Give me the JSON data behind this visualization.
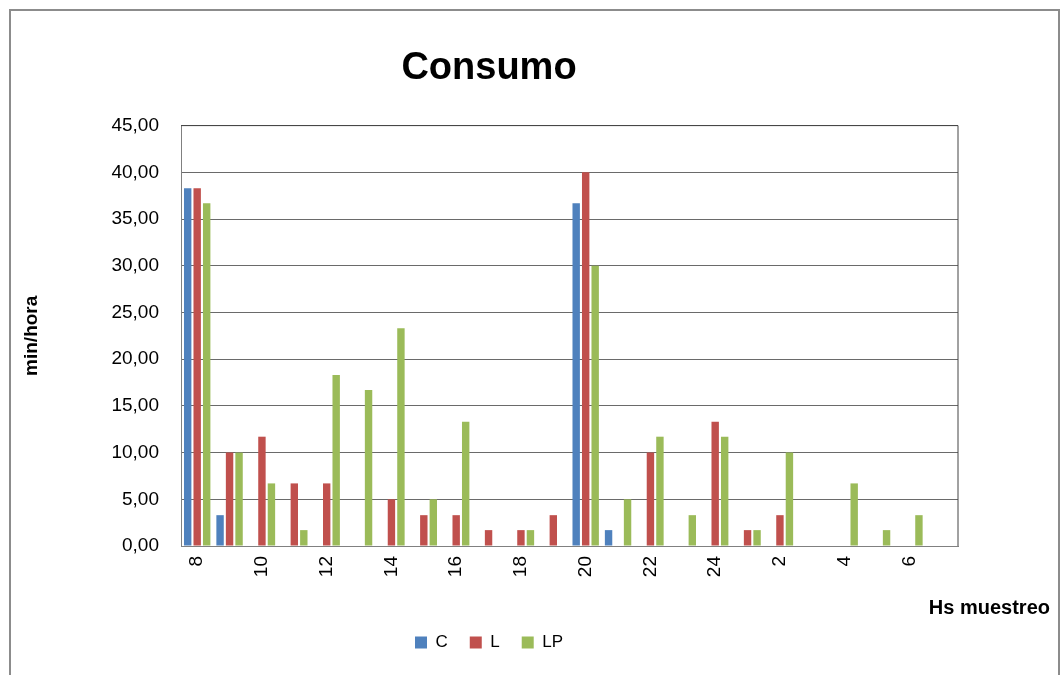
{
  "chart_data": {
    "type": "bar",
    "title": "Consumo",
    "xlabel": "Hs muestreo",
    "ylabel": "min/hora",
    "categories": [
      "8",
      null,
      "10",
      null,
      "12",
      null,
      "14",
      null,
      "16",
      null,
      "18",
      null,
      "20",
      null,
      "22",
      null,
      "24",
      null,
      "2",
      null,
      "4",
      null,
      "6",
      null
    ],
    "series": [
      {
        "name": "C",
        "color": "#4f81bd",
        "values": [
          38.3,
          3.3,
          0,
          0,
          0,
          0,
          0,
          0,
          0,
          0,
          0,
          0,
          36.7,
          1.7,
          0,
          0,
          0,
          0,
          0,
          0,
          0,
          0,
          0,
          0
        ]
      },
      {
        "name": "L",
        "color": "#c0504d",
        "values": [
          38.3,
          10,
          11.7,
          6.7,
          6.7,
          0,
          5,
          3.3,
          3.3,
          1.7,
          1.7,
          3.3,
          40,
          0,
          10,
          0,
          13.3,
          1.7,
          3.3,
          0,
          0,
          0,
          0,
          0
        ]
      },
      {
        "name": "LP",
        "color": "#9bbb59",
        "values": [
          36.7,
          10,
          6.7,
          1.7,
          18.3,
          16.7,
          23.3,
          5,
          13.3,
          0,
          1.7,
          0,
          30,
          5,
          11.7,
          3.3,
          11.7,
          1.7,
          10,
          0,
          6.7,
          1.7,
          3.3,
          0
        ]
      }
    ],
    "ylim": [
      0,
      45
    ],
    "yticks": [
      {
        "value": 0,
        "label": "0,00"
      },
      {
        "value": 5,
        "label": "5,00"
      },
      {
        "value": 10,
        "label": "10,00"
      },
      {
        "value": 15,
        "label": "15,00"
      },
      {
        "value": 20,
        "label": "20,00"
      },
      {
        "value": 25,
        "label": "25,00"
      },
      {
        "value": 30,
        "label": "30,00"
      },
      {
        "value": 35,
        "label": "35,00"
      },
      {
        "value": 40,
        "label": "40,00"
      },
      {
        "value": 45,
        "label": "45,00"
      }
    ],
    "grid": "y",
    "legend": "bottom"
  }
}
